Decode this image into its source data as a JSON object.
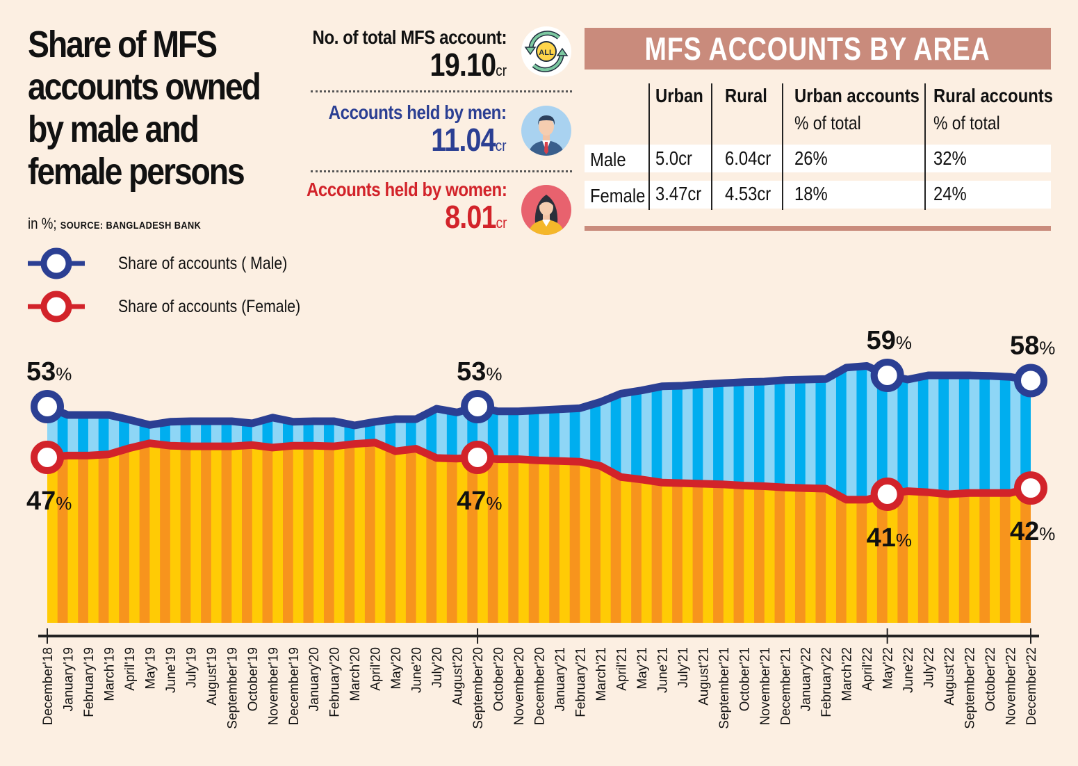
{
  "header": {
    "title_lines": [
      "Share of MFS",
      "accounts owned",
      "by male and",
      "female persons"
    ],
    "unit": "in %;",
    "source": "SOURCE: BANGLADESH BANK"
  },
  "stats": {
    "total": {
      "label": "No. of total MFS account:",
      "value": "19.10",
      "unit": "cr",
      "icon": "all-accounts-cycle-icon"
    },
    "men": {
      "label": "Accounts held by men:",
      "value": "11.04",
      "unit": "cr",
      "icon": "man-avatar-icon"
    },
    "women": {
      "label": "Accounts held by women:",
      "value": "8.01",
      "unit": "cr",
      "icon": "woman-avatar-icon"
    }
  },
  "area_table": {
    "title": "MFS ACCOUNTS BY AREA",
    "columns": [
      "Urban",
      "Rural",
      "Urban accounts",
      "Rural accounts"
    ],
    "column_subtitles": [
      "",
      "",
      "% of total",
      "% of total"
    ],
    "rows": [
      {
        "label": "Male",
        "cells": [
          "5.0cr",
          "6.04cr",
          "26%",
          "32%"
        ]
      },
      {
        "label": "Female",
        "cells": [
          "3.47cr",
          "4.53cr",
          "18%",
          "24%"
        ]
      }
    ]
  },
  "legend": [
    {
      "label": "Share of accounts ( Male)",
      "color": "#2b3f93"
    },
    {
      "label": "Share of accounts (Female)",
      "color": "#d2232a"
    }
  ],
  "colors": {
    "male_line": "#2b3f93",
    "female_line": "#d2232a",
    "blue_light": "#8ed6f6",
    "blue_dark": "#00aeef",
    "yellow": "#ffcb05",
    "orange": "#f7941d",
    "accent_banner": "#c98b7c",
    "men_text": "#2b3f93",
    "women_text": "#d2232a"
  },
  "chart_data": {
    "type": "area",
    "title": "Share of MFS accounts owned by male and female persons",
    "xlabel": "",
    "ylabel": "in %",
    "x": [
      "December'18",
      "January'19",
      "February'19",
      "March'19",
      "April'19",
      "May'19",
      "June'19",
      "July'19",
      "August'19",
      "September'19",
      "October'19",
      "November'19",
      "December'19",
      "January'20",
      "February'20",
      "March'20",
      "April'20",
      "May'20",
      "June'20",
      "July'20",
      "August'20",
      "September'20",
      "October'20",
      "November'20",
      "December'20",
      "January'21",
      "February'21",
      "March'21",
      "April'21",
      "May'21",
      "June'21",
      "July'21",
      "August'21",
      "September'21",
      "October'21",
      "November'21",
      "December'21",
      "January'22",
      "February'22",
      "March'22",
      "April'22",
      "May'22",
      "June'22",
      "July'22",
      "August'22",
      "September'22",
      "October'22",
      "November'22",
      "December'22"
    ],
    "series": [
      {
        "name": "Share of accounts ( Male)",
        "values": [
          53.0,
          51.4,
          51.4,
          51.4,
          50.5,
          49.5,
          50.1,
          50.2,
          50.2,
          50.2,
          49.8,
          50.9,
          50.1,
          50.2,
          50.2,
          49.4,
          50.1,
          50.6,
          50.6,
          52.6,
          51.9,
          53.0,
          52.1,
          52.1,
          52.3,
          52.5,
          52.7,
          53.9,
          55.5,
          56.1,
          56.9,
          57.0,
          57.3,
          57.5,
          57.7,
          57.8,
          58.1,
          58.2,
          58.3,
          60.5,
          60.8,
          59.0,
          58.2,
          59.0,
          59.0,
          59.0,
          58.9,
          58.7,
          58.0
        ]
      },
      {
        "name": "Share of accounts (Female)",
        "values": [
          47.0,
          47.3,
          47.3,
          47.5,
          48.5,
          49.3,
          48.9,
          48.8,
          48.8,
          48.8,
          49.0,
          48.6,
          48.9,
          48.9,
          48.8,
          49.2,
          49.4,
          48.0,
          48.4,
          46.9,
          46.8,
          47.0,
          46.7,
          46.7,
          46.5,
          46.4,
          46.3,
          45.6,
          43.8,
          43.4,
          42.9,
          42.8,
          42.7,
          42.6,
          42.4,
          42.3,
          42.1,
          42.0,
          41.9,
          40.1,
          40.1,
          41.0,
          41.5,
          41.3,
          41.0,
          41.2,
          41.2,
          41.2,
          42.0
        ]
      }
    ],
    "annotations": [
      {
        "series": 0,
        "index": 0,
        "text": "53",
        "suffix": "%"
      },
      {
        "series": 0,
        "index": 21,
        "text": "53",
        "suffix": "%"
      },
      {
        "series": 0,
        "index": 41,
        "text": "59",
        "suffix": "%"
      },
      {
        "series": 0,
        "index": 48,
        "text": "58",
        "suffix": "%"
      },
      {
        "series": 1,
        "index": 0,
        "text": "47",
        "suffix": "%"
      },
      {
        "series": 1,
        "index": 21,
        "text": "47",
        "suffix": "%"
      },
      {
        "series": 1,
        "index": 41,
        "text": "41",
        "suffix": "%"
      },
      {
        "series": 1,
        "index": 48,
        "text": "42",
        "suffix": "%"
      }
    ],
    "major_ticks": [
      0,
      21,
      41,
      48
    ],
    "grid": false,
    "legend": "top-left"
  }
}
